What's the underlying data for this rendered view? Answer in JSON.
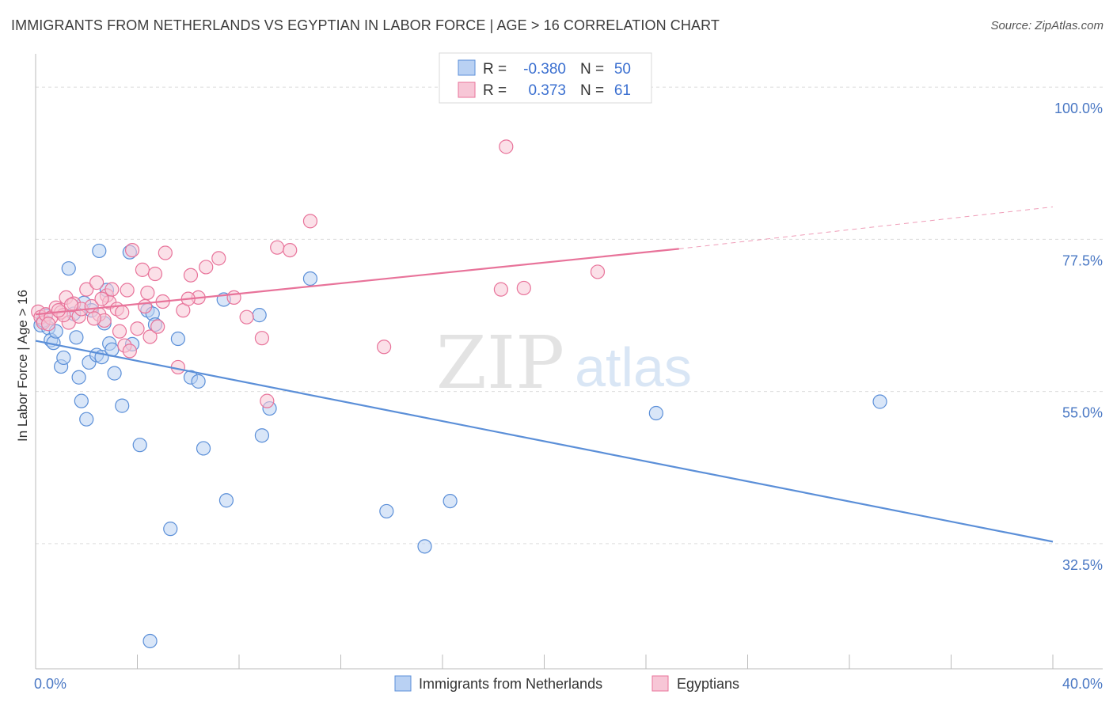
{
  "title": "IMMIGRANTS FROM NETHERLANDS VS EGYPTIAN IN LABOR FORCE | AGE > 16 CORRELATION CHART",
  "source": "Source: ZipAtlas.com",
  "watermark": {
    "zip": "ZIP",
    "atlas": "atlas"
  },
  "legend_top": [
    {
      "r_label": "R =",
      "r_value": "-0.380",
      "n_label": "N =",
      "n_value": "50"
    },
    {
      "r_label": "R =",
      "r_value": "0.373",
      "n_label": "N =",
      "n_value": "61"
    }
  ],
  "chart_data": {
    "type": "scatter",
    "title": "IMMIGRANTS FROM NETHERLANDS VS EGYPTIAN IN LABOR FORCE | AGE > 16 CORRELATION CHART",
    "xlabel": "",
    "ylabel": "In Labor Force | Age > 16",
    "xlim": [
      0,
      40
    ],
    "ylim": [
      14,
      104
    ],
    "x_tick_labels": [
      "0.0%",
      "40.0%"
    ],
    "y_ticks": [
      32.5,
      55.0,
      77.5,
      100.0
    ],
    "y_tick_labels": [
      "32.5%",
      "55.0%",
      "77.5%",
      "100.0%"
    ],
    "grid": true,
    "legend_placement": "top-center",
    "series": [
      {
        "name": "Immigrants from Netherlands",
        "color": "#5b8fd8",
        "fill": "#b9d1f3",
        "trend": {
          "x": [
            0,
            40
          ],
          "y": [
            62.5,
            32.8
          ]
        },
        "points": [
          [
            0.2,
            64.8
          ],
          [
            0.4,
            66.2
          ],
          [
            0.5,
            64.4
          ],
          [
            0.6,
            62.6
          ],
          [
            0.7,
            62.2
          ],
          [
            0.8,
            63.9
          ],
          [
            1.0,
            58.7
          ],
          [
            1.1,
            60.0
          ],
          [
            1.3,
            73.2
          ],
          [
            1.5,
            66.5
          ],
          [
            1.7,
            57.1
          ],
          [
            1.8,
            53.6
          ],
          [
            1.9,
            68.1
          ],
          [
            2.0,
            50.9
          ],
          [
            2.1,
            59.3
          ],
          [
            2.2,
            67.0
          ],
          [
            2.4,
            60.4
          ],
          [
            2.5,
            75.8
          ],
          [
            2.6,
            60.1
          ],
          [
            2.7,
            65.1
          ],
          [
            2.8,
            70.0
          ],
          [
            2.9,
            62.1
          ],
          [
            3.0,
            61.2
          ],
          [
            3.1,
            57.7
          ],
          [
            3.4,
            52.9
          ],
          [
            3.7,
            75.6
          ],
          [
            3.8,
            62.0
          ],
          [
            4.1,
            47.1
          ],
          [
            4.4,
            67.0
          ],
          [
            4.6,
            66.5
          ],
          [
            4.7,
            64.9
          ],
          [
            5.3,
            34.7
          ],
          [
            5.6,
            62.8
          ],
          [
            6.1,
            57.1
          ],
          [
            6.4,
            56.5
          ],
          [
            6.6,
            46.6
          ],
          [
            7.4,
            68.6
          ],
          [
            7.5,
            38.9
          ],
          [
            8.8,
            66.3
          ],
          [
            8.9,
            48.5
          ],
          [
            9.2,
            52.5
          ],
          [
            10.8,
            71.7
          ],
          [
            13.8,
            37.3
          ],
          [
            15.3,
            32.1
          ],
          [
            16.3,
            38.8
          ],
          [
            24.4,
            51.8
          ],
          [
            33.2,
            53.5
          ],
          [
            4.5,
            18.1
          ],
          [
            0.3,
            65.5
          ],
          [
            1.6,
            63.0
          ]
        ]
      },
      {
        "name": "Egyptians",
        "color": "#e8739a",
        "fill": "#f7c6d6",
        "trend": {
          "x": [
            0,
            25.3
          ],
          "y": [
            66.4,
            76.1
          ]
        },
        "trend_dashed": {
          "x": [
            25.3,
            40
          ],
          "y": [
            76.1,
            82.3
          ]
        },
        "points": [
          [
            0.1,
            66.8
          ],
          [
            0.2,
            66.0
          ],
          [
            0.3,
            65.2
          ],
          [
            0.4,
            66.4
          ],
          [
            0.6,
            65.9
          ],
          [
            0.8,
            67.4
          ],
          [
            1.0,
            66.7
          ],
          [
            1.2,
            68.9
          ],
          [
            1.3,
            65.2
          ],
          [
            1.5,
            68.0
          ],
          [
            1.7,
            66.1
          ],
          [
            1.8,
            67.2
          ],
          [
            2.0,
            70.1
          ],
          [
            2.2,
            67.6
          ],
          [
            2.4,
            71.1
          ],
          [
            2.5,
            66.4
          ],
          [
            2.7,
            65.5
          ],
          [
            2.8,
            69.2
          ],
          [
            2.9,
            68.2
          ],
          [
            3.0,
            70.1
          ],
          [
            3.2,
            67.2
          ],
          [
            3.3,
            63.9
          ],
          [
            3.4,
            66.7
          ],
          [
            3.5,
            61.8
          ],
          [
            3.7,
            61.0
          ],
          [
            3.8,
            75.9
          ],
          [
            4.0,
            64.3
          ],
          [
            4.2,
            73.0
          ],
          [
            4.3,
            67.6
          ],
          [
            4.4,
            69.6
          ],
          [
            4.5,
            63.1
          ],
          [
            4.7,
            72.4
          ],
          [
            5.0,
            68.3
          ],
          [
            5.1,
            75.5
          ],
          [
            5.6,
            58.6
          ],
          [
            5.8,
            67.0
          ],
          [
            6.1,
            72.2
          ],
          [
            6.4,
            68.9
          ],
          [
            6.7,
            73.4
          ],
          [
            7.2,
            74.7
          ],
          [
            7.8,
            68.9
          ],
          [
            8.3,
            66.0
          ],
          [
            8.9,
            62.9
          ],
          [
            9.1,
            53.6
          ],
          [
            9.5,
            76.3
          ],
          [
            10.0,
            75.9
          ],
          [
            10.8,
            80.2
          ],
          [
            13.7,
            61.6
          ],
          [
            18.3,
            70.1
          ],
          [
            18.5,
            91.2
          ],
          [
            19.2,
            70.3
          ],
          [
            22.1,
            72.7
          ],
          [
            0.5,
            65.0
          ],
          [
            1.4,
            67.8
          ],
          [
            2.6,
            68.7
          ],
          [
            3.6,
            70.0
          ],
          [
            4.8,
            64.6
          ],
          [
            6.0,
            68.7
          ],
          [
            1.1,
            66.3
          ],
          [
            2.3,
            65.8
          ],
          [
            0.9,
            67.0
          ]
        ]
      }
    ]
  }
}
